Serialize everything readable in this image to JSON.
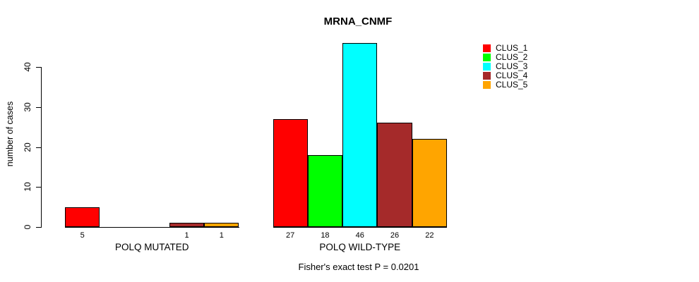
{
  "background": "#ffffff",
  "subtitle": "Fisher's exact test P = 0.0201",
  "chart_data": {
    "type": "bar",
    "title": "MRNA_CNMF",
    "xlabel": "",
    "ylabel": "number of cases",
    "ylim": [
      0,
      46
    ],
    "yticks": [
      0,
      10,
      20,
      30,
      40
    ],
    "grid": false,
    "legend_position": "top-right",
    "bar_value_labels_shown": true,
    "bar_border_color": "#000000",
    "categories": [
      "POLQ MUTATED",
      "POLQ WILD-TYPE"
    ],
    "series": [
      {
        "name": "CLUS_1",
        "color": "#FF0000",
        "values": [
          5,
          27
        ]
      },
      {
        "name": "CLUS_2",
        "color": "#00FF00",
        "values": [
          0,
          18
        ]
      },
      {
        "name": "CLUS_3",
        "color": "#00FFFF",
        "values": [
          0,
          46
        ]
      },
      {
        "name": "CLUS_4",
        "color": "#A52A2A",
        "values": [
          1,
          26
        ]
      },
      {
        "name": "CLUS_5",
        "color": "#FFA500",
        "values": [
          1,
          22
        ]
      }
    ],
    "annotation": "Fisher's exact test P = 0.0201"
  }
}
